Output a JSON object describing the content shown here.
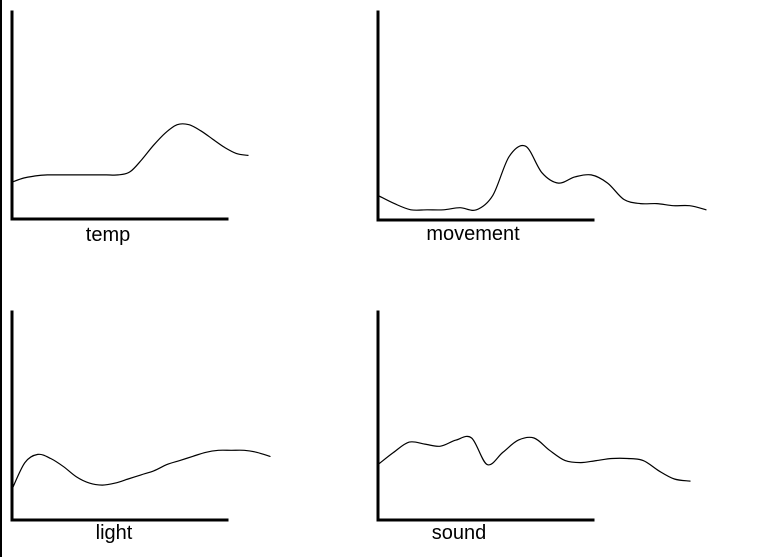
{
  "chart_data": [
    {
      "type": "line",
      "xlabel": "temp",
      "x": [
        0,
        0.05,
        0.1,
        0.15,
        0.2,
        0.25,
        0.3,
        0.35,
        0.4,
        0.45,
        0.5,
        0.55,
        0.6,
        0.65,
        0.7,
        0.75,
        0.8,
        0.85,
        0.9,
        0.95,
        1.0
      ],
      "y": [
        0.18,
        0.2,
        0.21,
        0.215,
        0.215,
        0.215,
        0.215,
        0.215,
        0.215,
        0.215,
        0.23,
        0.29,
        0.36,
        0.42,
        0.46,
        0.46,
        0.43,
        0.39,
        0.35,
        0.32,
        0.31
      ],
      "grid": false
    },
    {
      "type": "line",
      "xlabel": "movement",
      "x": [
        0,
        0.05,
        0.1,
        0.15,
        0.2,
        0.25,
        0.3,
        0.35,
        0.4,
        0.45,
        0.5,
        0.55,
        0.6,
        0.65,
        0.7,
        0.75,
        0.8,
        0.85,
        0.9,
        0.95,
        1.0
      ],
      "y": [
        0.12,
        0.08,
        0.05,
        0.05,
        0.05,
        0.06,
        0.05,
        0.12,
        0.31,
        0.36,
        0.23,
        0.18,
        0.21,
        0.22,
        0.18,
        0.1,
        0.08,
        0.08,
        0.07,
        0.07,
        0.05
      ],
      "grid": false
    },
    {
      "type": "line",
      "xlabel": "light",
      "x": [
        0,
        0.05,
        0.1,
        0.15,
        0.2,
        0.25,
        0.3,
        0.35,
        0.4,
        0.45,
        0.5,
        0.55,
        0.6,
        0.65,
        0.7,
        0.75,
        0.8,
        0.85,
        0.9,
        0.95,
        1.0
      ],
      "y": [
        0.15,
        0.28,
        0.32,
        0.3,
        0.26,
        0.21,
        0.18,
        0.17,
        0.18,
        0.2,
        0.22,
        0.24,
        0.27,
        0.29,
        0.31,
        0.33,
        0.34,
        0.34,
        0.34,
        0.33,
        0.31
      ],
      "grid": false
    },
    {
      "type": "line",
      "xlabel": "sound",
      "x": [
        0,
        0.05,
        0.1,
        0.15,
        0.2,
        0.25,
        0.3,
        0.35,
        0.4,
        0.45,
        0.5,
        0.55,
        0.6,
        0.65,
        0.7,
        0.75,
        0.8,
        0.85,
        0.9,
        0.95,
        1.0
      ],
      "y": [
        0.27,
        0.33,
        0.38,
        0.37,
        0.36,
        0.39,
        0.4,
        0.27,
        0.33,
        0.39,
        0.4,
        0.34,
        0.29,
        0.28,
        0.29,
        0.3,
        0.3,
        0.29,
        0.24,
        0.2,
        0.19
      ],
      "grid": false
    }
  ]
}
